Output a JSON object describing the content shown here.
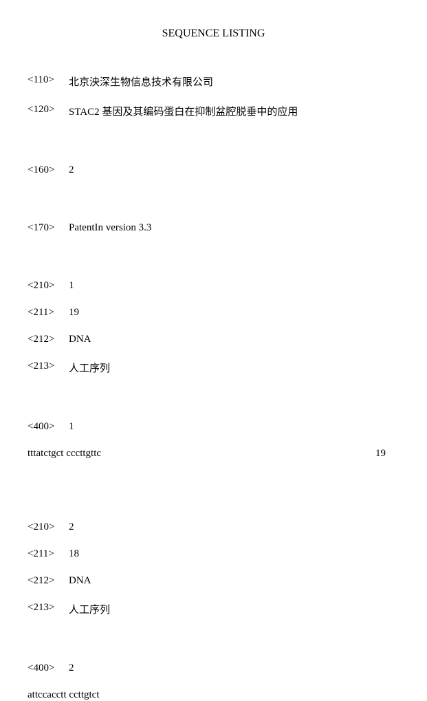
{
  "title": "SEQUENCE LISTING",
  "header": {
    "tag110": "<110>",
    "value110": "北京泱深生物信息技术有限公司",
    "tag120": "<120>",
    "value120": "STAC2 基因及其编码蛋白在抑制盆腔脱垂中的应用",
    "tag160": "<160>",
    "value160": "2",
    "tag170": "<170>",
    "value170": "PatentIn version 3.3"
  },
  "seq1": {
    "tag210": "<210>",
    "value210": "1",
    "tag211": "<211>",
    "value211": "19",
    "tag212": "<212>",
    "value212": "DNA",
    "tag213": "<213>",
    "value213": "人工序列",
    "tag400": "<400>",
    "value400": "1",
    "sequence": "tttatctgct cccttgttc",
    "count": "19"
  },
  "seq2": {
    "tag210": "<210>",
    "value210": "2",
    "tag211": "<211>",
    "value211": "18",
    "tag212": "<212>",
    "value212": "DNA",
    "tag213": "<213>",
    "value213": "人工序列",
    "tag400": "<400>",
    "value400": "2",
    "sequence": "attccacctt ccttgtct"
  }
}
